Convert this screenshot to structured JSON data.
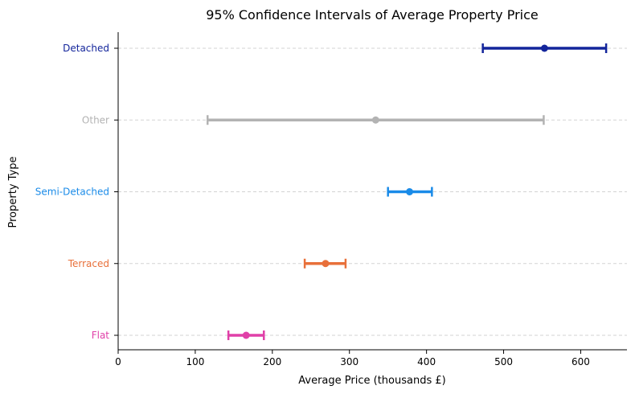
{
  "chart_data": {
    "type": "errorbar",
    "title": "95% Confidence Intervals of Average Property Price",
    "xlabel": "Average Price (thousands £)",
    "ylabel": "Property Type",
    "xlim": [
      0,
      660
    ],
    "xticks": [
      0,
      100,
      200,
      300,
      400,
      500,
      600
    ],
    "grid": "horizontal dashed",
    "categories": [
      "Detached",
      "Other",
      "Semi-Detached",
      "Terraced",
      "Flat"
    ],
    "series": [
      {
        "category": "Detached",
        "mean": 553,
        "lower": 473,
        "upper": 633,
        "color": "#13259b"
      },
      {
        "category": "Other",
        "mean": 334,
        "lower": 116,
        "upper": 552,
        "color": "#b3b3b3"
      },
      {
        "category": "Semi-Detached",
        "mean": 378,
        "lower": 350,
        "upper": 407,
        "color": "#1a8be8"
      },
      {
        "category": "Terraced",
        "mean": 269,
        "lower": 242,
        "upper": 295,
        "color": "#e8703a"
      },
      {
        "category": "Flat",
        "mean": 166,
        "lower": 143,
        "upper": 189,
        "color": "#e040a8"
      }
    ]
  }
}
